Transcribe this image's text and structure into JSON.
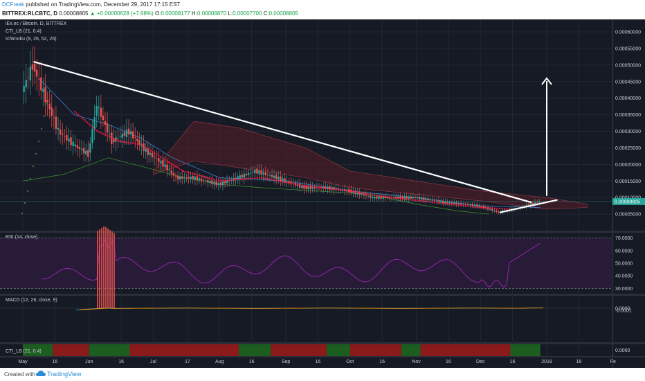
{
  "header": {
    "author": "DCFreak",
    "published": "published on TradingView.com, December 29, 2017 17:15 EST",
    "symbol_line": "BITTREX:RLCBTC, D",
    "last": "0.00008805",
    "change": "▲ +0.00000628 (+7.68%)",
    "o_label": "O:",
    "o": "0.00008177",
    "h_label": "H:",
    "h": "0.00008870",
    "l_label": "L:",
    "l": "0.00007700",
    "c_label": "C:",
    "c": "0.00008805"
  },
  "legends": {
    "main_title": "iEx.ec / Bitcoin, D, BITTREX",
    "cti_main": "CTI_LB (21, 0.4)",
    "ichimoku": "Ichimoku (9, 26, 52, 26)",
    "rsi": "RSI (14, close)",
    "macd": "MACD (12, 26, close, 9)",
    "cti_pane": "CTI_LB (21, 0.4)"
  },
  "price_axis": [
    "0.00060000",
    "0.00055000",
    "0.00050000",
    "0.00045000",
    "0.00040000",
    "0.00035000",
    "0.00030000",
    "0.00025000",
    "0.00020000",
    "0.00015000",
    "0.00010000",
    "0.00005000"
  ],
  "price_badge": "0.00008805",
  "rsi_axis": [
    "70.0000",
    "60.0000",
    "50.0000",
    "40.0000",
    "30.0000"
  ],
  "macd_axis": [
    "0.0000",
    "-0.0001"
  ],
  "cti_axis": [
    "0.0000"
  ],
  "time_axis": [
    "May",
    "16",
    "Jun",
    "16",
    "Jul",
    "17",
    "Aug",
    "16",
    "Sep",
    "16",
    "Oct",
    "16",
    "Nov",
    "16",
    "Dec",
    "16",
    "2018",
    "16",
    "Fe"
  ],
  "footer": {
    "created": "Created with",
    "brand": "TradingView"
  },
  "colors": {
    "bg": "#161a25",
    "up": "#26a69a",
    "down": "#ef5350",
    "rsi": "#9c27b0",
    "macd": "#2196f3",
    "signal": "#ff9800",
    "cti_green": "#1b5e20",
    "cti_red": "#8b1a1a"
  },
  "chart_data": {
    "type": "candlestick",
    "symbol": "BITTREX:RLCBTC",
    "interval": "D",
    "ylim": [
      0.0,
      0.0006
    ],
    "x_range": [
      "2017-05-01",
      "2018-02-03"
    ],
    "close_series": [
      {
        "date": "2017-05-01",
        "close": 0.00042
      },
      {
        "date": "2017-05-06",
        "close": 0.0005
      },
      {
        "date": "2017-05-12",
        "close": 0.0004
      },
      {
        "date": "2017-05-18",
        "close": 0.0003
      },
      {
        "date": "2017-05-25",
        "close": 0.00026
      },
      {
        "date": "2017-06-01",
        "close": 0.00023
      },
      {
        "date": "2017-06-05",
        "close": 0.00038
      },
      {
        "date": "2017-06-12",
        "close": 0.00027
      },
      {
        "date": "2017-06-20",
        "close": 0.0003
      },
      {
        "date": "2017-06-28",
        "close": 0.00024
      },
      {
        "date": "2017-07-06",
        "close": 0.0002
      },
      {
        "date": "2017-07-12",
        "close": 0.00016
      },
      {
        "date": "2017-07-20",
        "close": 0.00016
      },
      {
        "date": "2017-08-01",
        "close": 0.00014
      },
      {
        "date": "2017-08-10",
        "close": 0.00016
      },
      {
        "date": "2017-08-18",
        "close": 0.00018
      },
      {
        "date": "2017-08-28",
        "close": 0.00016
      },
      {
        "date": "2017-09-10",
        "close": 0.00013
      },
      {
        "date": "2017-09-20",
        "close": 0.00013
      },
      {
        "date": "2017-10-01",
        "close": 0.00012
      },
      {
        "date": "2017-10-12",
        "close": 0.0001
      },
      {
        "date": "2017-10-25",
        "close": 0.0001
      },
      {
        "date": "2017-11-01",
        "close": 0.0001
      },
      {
        "date": "2017-11-15",
        "close": 8.5e-05
      },
      {
        "date": "2017-12-01",
        "close": 7.5e-05
      },
      {
        "date": "2017-12-10",
        "close": 5.5e-05
      },
      {
        "date": "2017-12-20",
        "close": 7e-05
      },
      {
        "date": "2017-12-29",
        "close": 8.805e-05
      }
    ],
    "trendlines": [
      {
        "from": {
          "date": "2017-05-06",
          "price": 0.00051
        },
        "to": {
          "date": "2017-12-25",
          "price": 8.5e-05
        }
      },
      {
        "from": {
          "date": "2017-12-10",
          "price": 5.5e-05
        },
        "to": {
          "date": "2018-01-06",
          "price": 9.3e-05
        }
      }
    ],
    "target_arrow": {
      "date": "2018-01-01",
      "from_price": 0.000105,
      "to_price": 0.00046
    },
    "rsi": {
      "upper": 70,
      "lower": 30
    },
    "cti_segments": [
      {
        "from": "2017-05-01",
        "to": "2017-05-15",
        "state": "green"
      },
      {
        "from": "2017-05-15",
        "to": "2017-06-01",
        "state": "red"
      },
      {
        "from": "2017-06-01",
        "to": "2017-06-20",
        "state": "green"
      },
      {
        "from": "2017-06-20",
        "to": "2017-08-10",
        "state": "red"
      },
      {
        "from": "2017-08-10",
        "to": "2017-08-25",
        "state": "green"
      },
      {
        "from": "2017-08-25",
        "to": "2017-09-20",
        "state": "red"
      },
      {
        "from": "2017-09-20",
        "to": "2017-10-01",
        "state": "green"
      },
      {
        "from": "2017-10-01",
        "to": "2017-10-25",
        "state": "red"
      },
      {
        "from": "2017-10-25",
        "to": "2017-11-03",
        "state": "green"
      },
      {
        "from": "2017-11-03",
        "to": "2017-12-15",
        "state": "red"
      },
      {
        "from": "2017-12-15",
        "to": "2017-12-29",
        "state": "green"
      }
    ]
  }
}
